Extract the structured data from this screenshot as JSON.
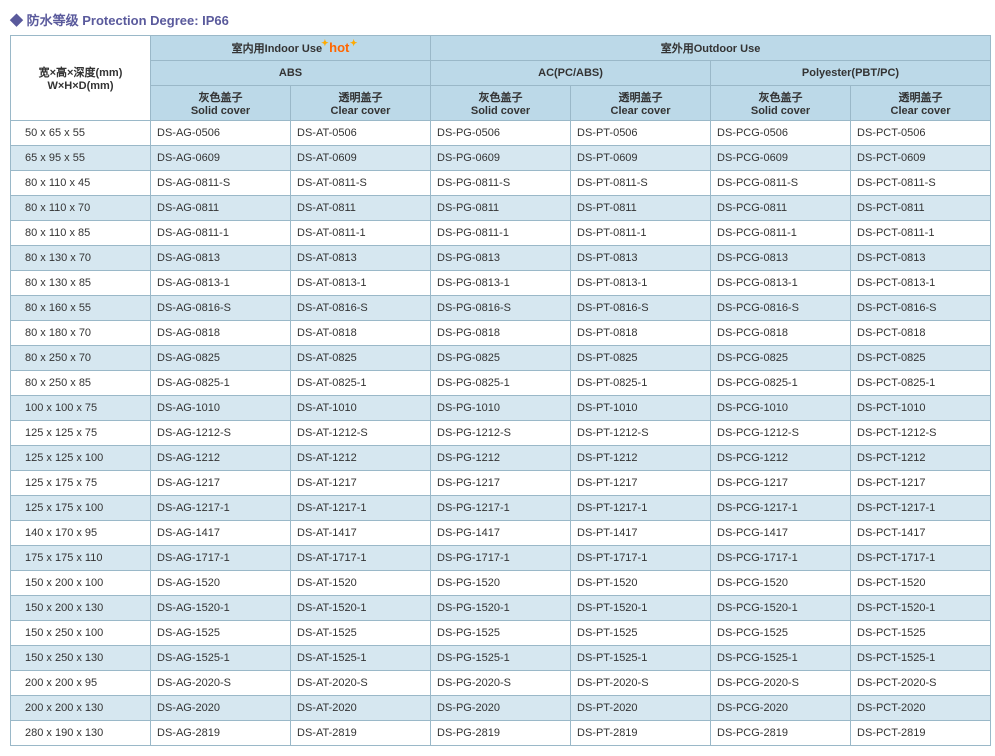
{
  "title": "防水等级 Protection Degree: IP66",
  "header": {
    "dim_l1": "宽×高×深度(mm)",
    "dim_l2": "W×H×D(mm)",
    "indoor": "室内用Indoor Use",
    "hot": "hot",
    "outdoor": "室外用Outdoor Use",
    "abs": "ABS",
    "ac": "AC(PC/ABS)",
    "poly": "Polyester(PBT/PC)",
    "solid_cn": "灰色盖子",
    "solid_en": "Solid cover",
    "clear_cn": "透明盖子",
    "clear_en": "Clear cover"
  },
  "rows": [
    {
      "dim": "50 x 65 x 55",
      "ag": "DS-AG-0506",
      "at": "DS-AT-0506",
      "pg": "DS-PG-0506",
      "pt": "DS-PT-0506",
      "pcg": "DS-PCG-0506",
      "pct": "DS-PCT-0506"
    },
    {
      "dim": "65 x 95 x 55",
      "ag": "DS-AG-0609",
      "at": "DS-AT-0609",
      "pg": "DS-PG-0609",
      "pt": "DS-PT-0609",
      "pcg": "DS-PCG-0609",
      "pct": "DS-PCT-0609"
    },
    {
      "dim": "80 x 110 x 45",
      "ag": "DS-AG-0811-S",
      "at": "DS-AT-0811-S",
      "pg": "DS-PG-0811-S",
      "pt": "DS-PT-0811-S",
      "pcg": "DS-PCG-0811-S",
      "pct": "DS-PCT-0811-S"
    },
    {
      "dim": "80 x 110 x 70",
      "ag": "DS-AG-0811",
      "at": "DS-AT-0811",
      "pg": "DS-PG-0811",
      "pt": "DS-PT-0811",
      "pcg": "DS-PCG-0811",
      "pct": "DS-PCT-0811"
    },
    {
      "dim": "80 x 110 x 85",
      "ag": "DS-AG-0811-1",
      "at": "DS-AT-0811-1",
      "pg": "DS-PG-0811-1",
      "pt": "DS-PT-0811-1",
      "pcg": "DS-PCG-0811-1",
      "pct": "DS-PCT-0811-1"
    },
    {
      "dim": "80 x 130 x 70",
      "ag": "DS-AG-0813",
      "at": "DS-AT-0813",
      "pg": "DS-PG-0813",
      "pt": "DS-PT-0813",
      "pcg": "DS-PCG-0813",
      "pct": "DS-PCT-0813"
    },
    {
      "dim": "80 x 130 x 85",
      "ag": "DS-AG-0813-1",
      "at": "DS-AT-0813-1",
      "pg": "DS-PG-0813-1",
      "pt": "DS-PT-0813-1",
      "pcg": "DS-PCG-0813-1",
      "pct": "DS-PCT-0813-1"
    },
    {
      "dim": "80 x 160 x 55",
      "ag": "DS-AG-0816-S",
      "at": "DS-AT-0816-S",
      "pg": "DS-PG-0816-S",
      "pt": "DS-PT-0816-S",
      "pcg": "DS-PCG-0816-S",
      "pct": "DS-PCT-0816-S"
    },
    {
      "dim": "80 x 180 x 70",
      "ag": "DS-AG-0818",
      "at": "DS-AT-0818",
      "pg": "DS-PG-0818",
      "pt": "DS-PT-0818",
      "pcg": "DS-PCG-0818",
      "pct": "DS-PCT-0818"
    },
    {
      "dim": "80 x 250 x 70",
      "ag": "DS-AG-0825",
      "at": "DS-AT-0825",
      "pg": "DS-PG-0825",
      "pt": "DS-PT-0825",
      "pcg": "DS-PCG-0825",
      "pct": "DS-PCT-0825"
    },
    {
      "dim": "80 x 250 x 85",
      "ag": "DS-AG-0825-1",
      "at": "DS-AT-0825-1",
      "pg": "DS-PG-0825-1",
      "pt": "DS-PT-0825-1",
      "pcg": "DS-PCG-0825-1",
      "pct": "DS-PCT-0825-1"
    },
    {
      "dim": "100 x 100 x 75",
      "ag": "DS-AG-1010",
      "at": "DS-AT-1010",
      "pg": "DS-PG-1010",
      "pt": "DS-PT-1010",
      "pcg": "DS-PCG-1010",
      "pct": "DS-PCT-1010"
    },
    {
      "dim": "125 x 125 x 75",
      "ag": "DS-AG-1212-S",
      "at": "DS-AT-1212-S",
      "pg": "DS-PG-1212-S",
      "pt": "DS-PT-1212-S",
      "pcg": "DS-PCG-1212-S",
      "pct": "DS-PCT-1212-S"
    },
    {
      "dim": "125 x 125 x 100",
      "ag": "DS-AG-1212",
      "at": "DS-AT-1212",
      "pg": "DS-PG-1212",
      "pt": "DS-PT-1212",
      "pcg": "DS-PCG-1212",
      "pct": "DS-PCT-1212"
    },
    {
      "dim": "125 x 175 x 75",
      "ag": "DS-AG-1217",
      "at": "DS-AT-1217",
      "pg": "DS-PG-1217",
      "pt": "DS-PT-1217",
      "pcg": "DS-PCG-1217",
      "pct": "DS-PCT-1217"
    },
    {
      "dim": "125 x 175 x 100",
      "ag": "DS-AG-1217-1",
      "at": "DS-AT-1217-1",
      "pg": "DS-PG-1217-1",
      "pt": "DS-PT-1217-1",
      "pcg": "DS-PCG-1217-1",
      "pct": "DS-PCT-1217-1"
    },
    {
      "dim": "140 x 170 x 95",
      "ag": "DS-AG-1417",
      "at": "DS-AT-1417",
      "pg": "DS-PG-1417",
      "pt": "DS-PT-1417",
      "pcg": "DS-PCG-1417",
      "pct": "DS-PCT-1417"
    },
    {
      "dim": "175 x 175 x 110",
      "ag": "DS-AG-1717-1",
      "at": "DS-AT-1717-1",
      "pg": "DS-PG-1717-1",
      "pt": "DS-PT-1717-1",
      "pcg": "DS-PCG-1717-1",
      "pct": "DS-PCT-1717-1"
    },
    {
      "dim": "150 x 200 x 100",
      "ag": "DS-AG-1520",
      "at": "DS-AT-1520",
      "pg": "DS-PG-1520",
      "pt": "DS-PT-1520",
      "pcg": "DS-PCG-1520",
      "pct": "DS-PCT-1520"
    },
    {
      "dim": "150 x 200 x 130",
      "ag": "DS-AG-1520-1",
      "at": "DS-AT-1520-1",
      "pg": "DS-PG-1520-1",
      "pt": "DS-PT-1520-1",
      "pcg": "DS-PCG-1520-1",
      "pct": "DS-PCT-1520-1"
    },
    {
      "dim": "150 x 250 x 100",
      "ag": "DS-AG-1525",
      "at": "DS-AT-1525",
      "pg": "DS-PG-1525",
      "pt": "DS-PT-1525",
      "pcg": "DS-PCG-1525",
      "pct": "DS-PCT-1525"
    },
    {
      "dim": "150 x 250 x 130",
      "ag": "DS-AG-1525-1",
      "at": "DS-AT-1525-1",
      "pg": "DS-PG-1525-1",
      "pt": "DS-PT-1525-1",
      "pcg": "DS-PCG-1525-1",
      "pct": "DS-PCT-1525-1"
    },
    {
      "dim": "200 x 200 x 95",
      "ag": "DS-AG-2020-S",
      "at": "DS-AT-2020-S",
      "pg": "DS-PG-2020-S",
      "pt": "DS-PT-2020-S",
      "pcg": "DS-PCG-2020-S",
      "pct": "DS-PCT-2020-S"
    },
    {
      "dim": "200 x 200 x 130",
      "ag": "DS-AG-2020",
      "at": "DS-AT-2020",
      "pg": "DS-PG-2020",
      "pt": "DS-PT-2020",
      "pcg": "DS-PCG-2020",
      "pct": "DS-PCT-2020"
    },
    {
      "dim": "280 x 190 x 130",
      "ag": "DS-AG-2819",
      "at": "DS-AT-2819",
      "pg": "DS-PG-2819",
      "pt": "DS-PT-2819",
      "pcg": "DS-PCG-2819",
      "pct": "DS-PCT-2819"
    }
  ]
}
